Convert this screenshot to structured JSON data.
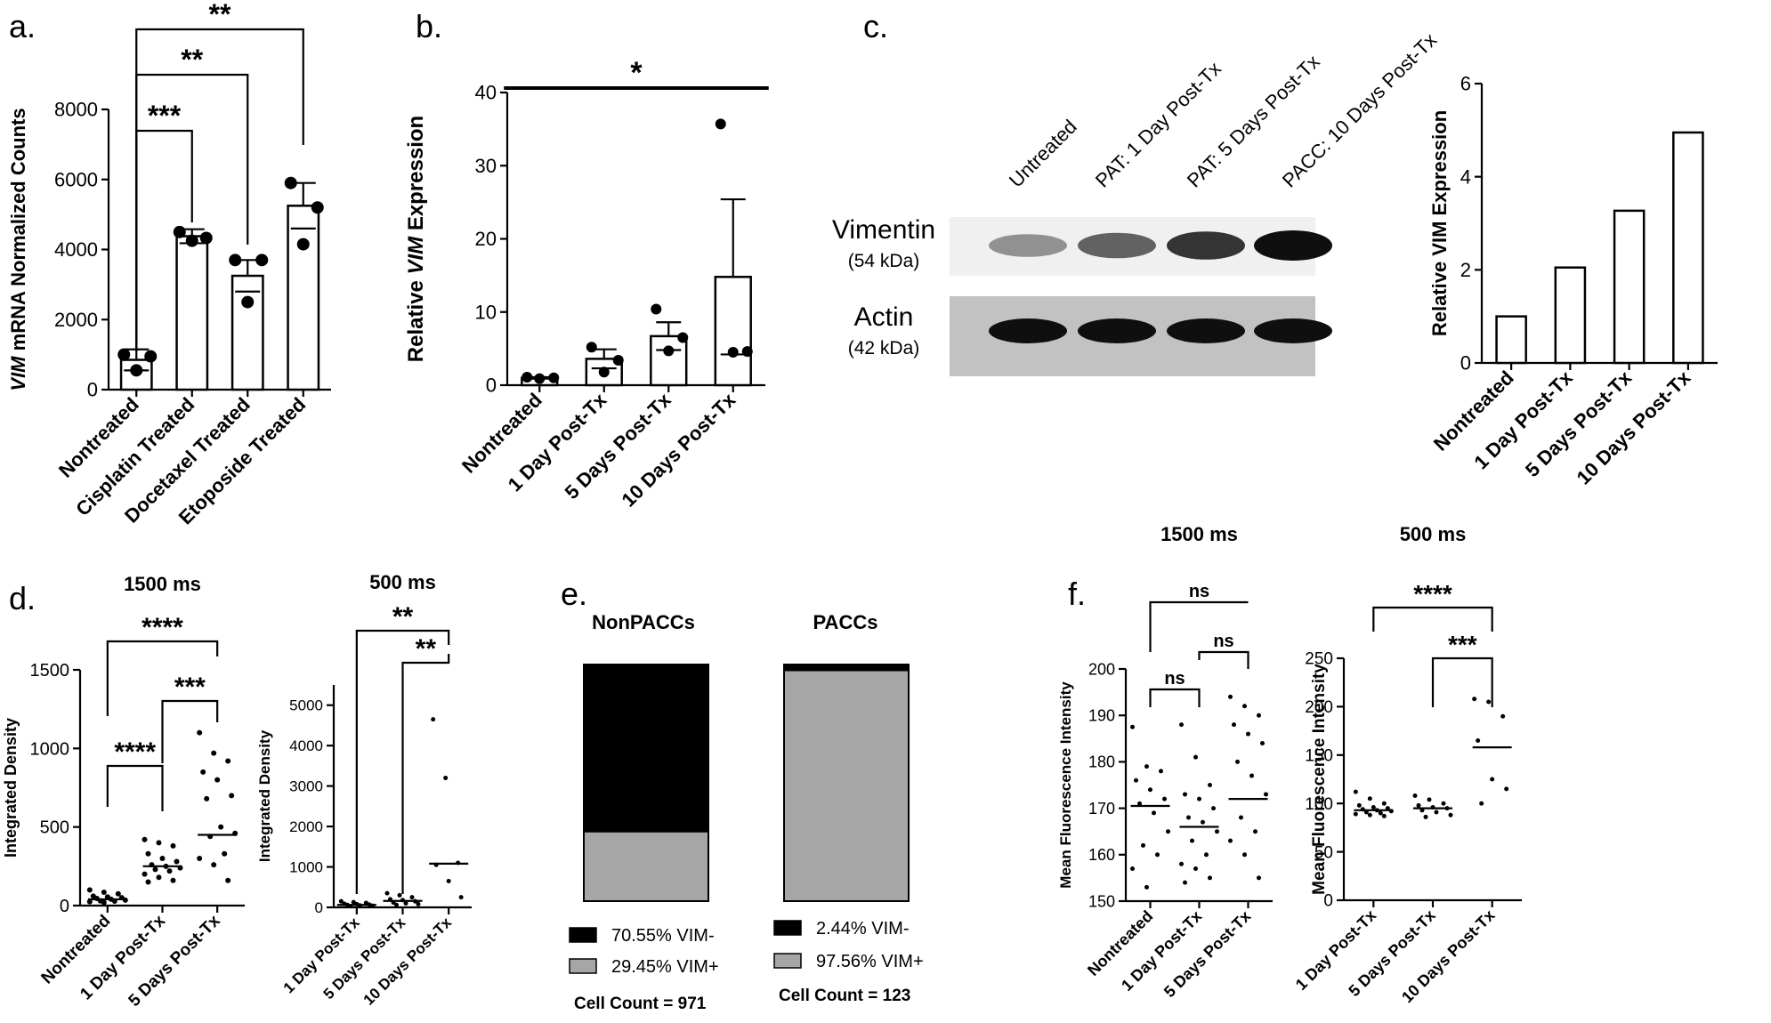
{
  "panels": {
    "a": "a.",
    "b": "b.",
    "c": "c.",
    "d": "d.",
    "e": "e.",
    "f": "f."
  },
  "chart_data": [
    {
      "id": "a",
      "type": "bar",
      "ylabel_italic": "VIM",
      "ylabel_rest": " mRNA Normalized Counts",
      "categories": [
        "Nontreated",
        "Cisplatin Treated",
        "Docetaxel Treated",
        "Etoposide Treated"
      ],
      "values": [
        850,
        4380,
        3250,
        5250
      ],
      "errors": [
        300,
        200,
        450,
        650
      ],
      "points": [
        [
          1000,
          950,
          550
        ],
        [
          4500,
          4330,
          4250
        ],
        [
          3700,
          3700,
          2500
        ],
        [
          5900,
          5200,
          4150
        ]
      ],
      "ylim": [
        0,
        8000
      ],
      "yticks": [
        0,
        2000,
        4000,
        6000,
        8000
      ],
      "ytick_labels": [
        "0",
        "2000",
        "4000",
        "6000",
        "8000"
      ],
      "sig": [
        {
          "from": 0,
          "to": 1,
          "label": "***"
        },
        {
          "from": 0,
          "to": 2,
          "label": "**"
        },
        {
          "from": 0,
          "to": 3,
          "label": "**"
        }
      ]
    },
    {
      "id": "b",
      "type": "bar",
      "ylabel_pre": "Relative ",
      "ylabel_italic": "VIM",
      "ylabel_rest": " Expression",
      "categories": [
        "Nontreated",
        "1 Day Post-Tx",
        "5 Days Post-Tx",
        "10 Days Post-Tx"
      ],
      "values": [
        1,
        3.6,
        6.7,
        14.8
      ],
      "errors": [
        0.1,
        1.3,
        1.9,
        10.6
      ],
      "points": [
        [
          1.1,
          1.0,
          0.9
        ],
        [
          5.2,
          3.4,
          1.8
        ],
        [
          10.4,
          6.5,
          4.7
        ],
        [
          35.7,
          4.6,
          4.5
        ]
      ],
      "ylim": [
        0,
        40
      ],
      "yticks": [
        0,
        10,
        20,
        30,
        40
      ],
      "ytick_labels": [
        "0",
        "10",
        "20",
        "30",
        "40"
      ],
      "sig": [
        {
          "from": 0,
          "to": 3,
          "label": "*"
        }
      ]
    },
    {
      "id": "c-bar",
      "type": "bar",
      "ylabel": "Relative VIM Expression",
      "categories": [
        "Nontreated",
        "1 Day Post-Tx",
        "5 Days Post-Tx",
        "10 Days Post-Tx"
      ],
      "values": [
        1.0,
        2.05,
        3.27,
        4.95
      ],
      "ylim": [
        0,
        6
      ],
      "yticks": [
        0,
        2,
        4,
        6
      ],
      "ytick_labels": [
        "0",
        "2",
        "4",
        "6"
      ]
    },
    {
      "id": "d1",
      "type": "scatter",
      "title": "1500 ms",
      "ylabel": "Integrated Density",
      "categories": [
        "Nontreated",
        "1 Day Post-Tx",
        "5 Days Post-Tx"
      ],
      "points": [
        [
          100,
          85,
          75,
          60,
          55,
          50,
          45,
          40,
          35,
          30,
          28,
          25,
          20
        ],
        [
          420,
          400,
          380,
          330,
          300,
          280,
          260,
          250,
          240,
          230,
          220,
          200,
          180,
          160,
          150
        ],
        [
          1100,
          970,
          920,
          850,
          800,
          700,
          680,
          500,
          460,
          440,
          330,
          300,
          260,
          160
        ]
      ],
      "medians": [
        40,
        250,
        450
      ],
      "ylim": [
        0,
        1500
      ],
      "yticks": [
        0,
        500,
        1000,
        1500
      ],
      "ytick_labels": [
        "0",
        "500",
        "1000",
        "1500"
      ],
      "sig": [
        {
          "from": 0,
          "to": 1,
          "label": "****"
        },
        {
          "from": 1,
          "to": 2,
          "label": "***"
        },
        {
          "from": 0,
          "to": 2,
          "label": "****"
        }
      ]
    },
    {
      "id": "d2",
      "type": "scatter",
      "title": "500 ms",
      "ylabel": "Integrated Density",
      "categories": [
        "1 Day Post-Tx",
        "5 Days Post-Tx",
        "10 Days Post-Tx"
      ],
      "points": [
        [
          150,
          130,
          110,
          90,
          80,
          70,
          60,
          50,
          40,
          30
        ],
        [
          350,
          300,
          250,
          200,
          180,
          150,
          120,
          100,
          80,
          60
        ],
        [
          4650,
          3200,
          1100,
          1050,
          650,
          250
        ]
      ],
      "medians": [
        60,
        160,
        1080
      ],
      "ylim": [
        0,
        5500
      ],
      "yticks": [
        0,
        1000,
        2000,
        3000,
        4000,
        5000
      ],
      "ytick_labels": [
        "0",
        "1000",
        "2000",
        "3000",
        "4000",
        "5000"
      ],
      "sig": [
        {
          "from": 1,
          "to": 2,
          "label": "**"
        },
        {
          "from": 0,
          "to": 2,
          "label": "**"
        }
      ]
    },
    {
      "id": "e",
      "type": "stacked-bar",
      "bars": [
        {
          "title": "NonPACCs",
          "neg": 70.55,
          "pos": 29.45,
          "neg_label": "70.55%  VIM-",
          "pos_label": "29.45%  VIM+",
          "count": "Cell Count = 971"
        },
        {
          "title": "PACCs",
          "neg": 2.44,
          "pos": 97.56,
          "neg_label": "2.44%  VIM-",
          "pos_label": "97.56%  VIM+",
          "count": "Cell Count = 123"
        }
      ],
      "colors": {
        "neg": "#000000",
        "pos": "#a6a6a6"
      }
    },
    {
      "id": "f1",
      "type": "scatter",
      "title": "1500 ms",
      "ylabel": "Mean Fluorescence Intensity",
      "categories": [
        "Nontreated",
        "1 Day Post-Tx",
        "5 Days Post-Tx"
      ],
      "points": [
        [
          187.5,
          179,
          178,
          176,
          174,
          172,
          171,
          169,
          165,
          162,
          160,
          157,
          153
        ],
        [
          188,
          181,
          175,
          173,
          172,
          170,
          168,
          167,
          165,
          163,
          160,
          158,
          157,
          155,
          154
        ],
        [
          194,
          192,
          190,
          188,
          186,
          184,
          180,
          177,
          173,
          168,
          165,
          163,
          160,
          155
        ]
      ],
      "medians": [
        170.5,
        166,
        172
      ],
      "ylim": [
        150,
        200
      ],
      "yticks": [
        150,
        160,
        170,
        180,
        190,
        200
      ],
      "ytick_labels": [
        "150",
        "160",
        "170",
        "180",
        "190",
        "200"
      ],
      "sig": [
        {
          "from": 0,
          "to": 1,
          "label": "ns"
        },
        {
          "from": 1,
          "to": 2,
          "label": "ns"
        },
        {
          "from": 0,
          "to": 2,
          "label": "ns"
        }
      ]
    },
    {
      "id": "f2",
      "type": "scatter",
      "title": "500 ms",
      "ylabel": "Mean Fluorescence Intensity",
      "categories": [
        "1 Day Post-Tx",
        "5 Days Post-Tx",
        "10 Days Post-Tx"
      ],
      "points": [
        [
          112,
          105,
          100,
          98,
          96,
          95,
          94,
          93,
          92,
          91,
          90,
          89,
          88,
          87
        ],
        [
          108,
          104,
          100,
          98,
          96,
          95,
          93,
          91,
          88,
          86
        ],
        [
          208,
          205,
          190,
          165,
          125,
          115,
          100
        ]
      ],
      "medians": [
        93,
        95,
        158
      ],
      "ylim": [
        0,
        250
      ],
      "yticks": [
        0,
        50,
        100,
        150,
        200,
        250
      ],
      "ytick_labels": [
        "0",
        "50",
        "100",
        "150",
        "200",
        "250"
      ],
      "sig": [
        {
          "from": 1,
          "to": 2,
          "label": "***"
        },
        {
          "from": 0,
          "to": 2,
          "label": "****"
        }
      ]
    }
  ],
  "blot": {
    "lanes": [
      "Untreated",
      "PAT: 1 Day Post-Tx",
      "PAT: 5 Days Post-Tx",
      "PACC: 10 Days Post-Tx"
    ],
    "rows": [
      {
        "name": "Vimentin",
        "kda": "(54 kDa)",
        "intensity": [
          0.3,
          0.55,
          0.8,
          1.0
        ]
      },
      {
        "name": "Actin",
        "kda": "(42 kDa)",
        "intensity": [
          1.0,
          1.0,
          1.0,
          1.0
        ]
      }
    ]
  }
}
